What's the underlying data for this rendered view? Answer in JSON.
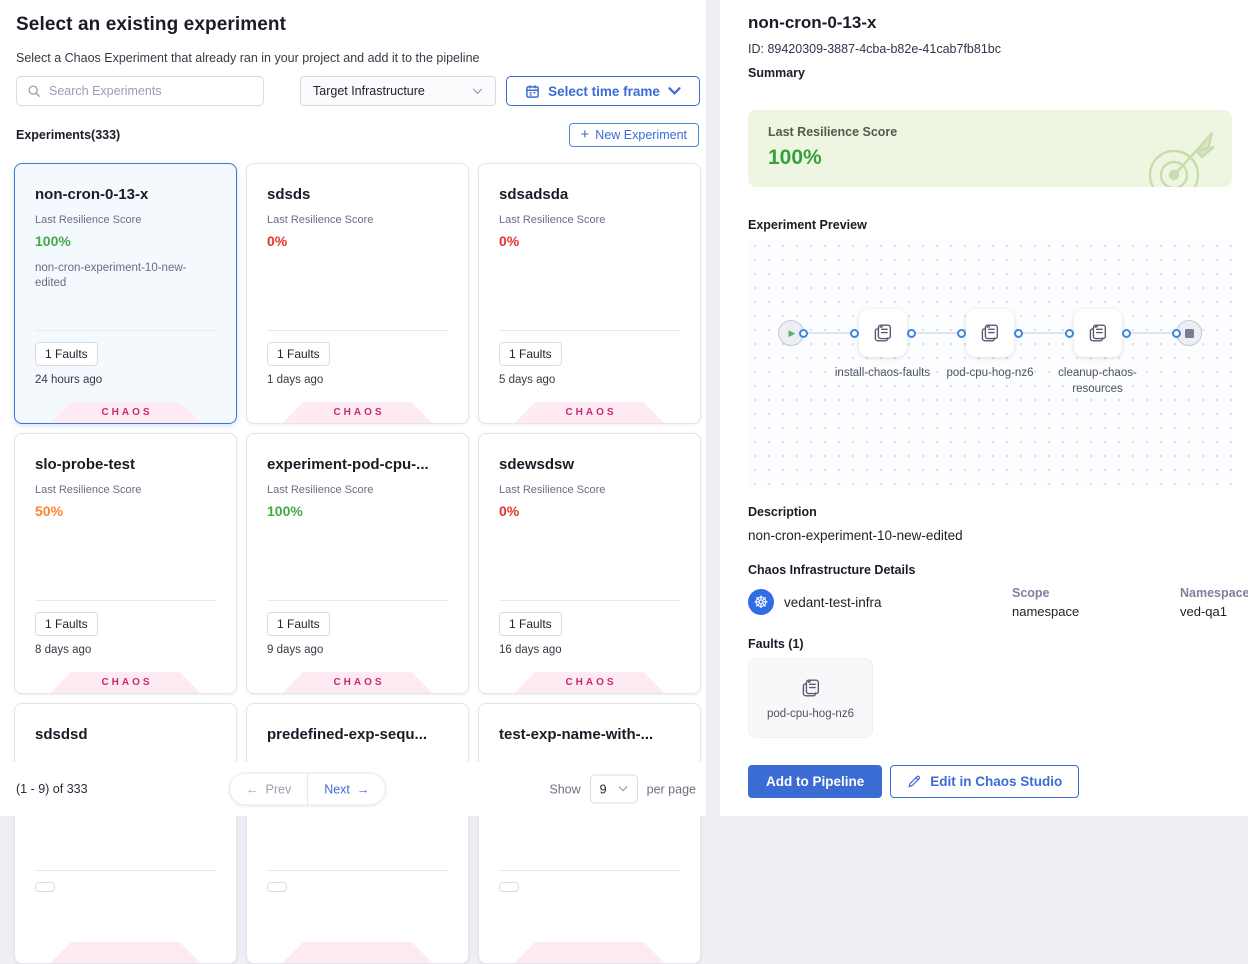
{
  "left": {
    "title": "Select an existing experiment",
    "subtitle": "Select a Chaos Experiment that already ran in your project and add it to the pipeline",
    "search_placeholder": "Search Experiments",
    "infra_filter_value": "Target Infrastructure",
    "time_frame_label": "Select time frame",
    "experiments_count": "Experiments(333)",
    "new_experiment_label": "New Experiment",
    "cards": [
      {
        "name": "non-cron-0-13-x",
        "score_label": "Last Resilience Score",
        "score": "100%",
        "score_class": "green",
        "description": "non-cron-experiment-10-new-edited",
        "faults": "1 Faults",
        "ago": "24 hours ago",
        "badge": "CHAOS",
        "selected": true
      },
      {
        "name": "sdsds",
        "score_label": "Last Resilience Score",
        "score": "0%",
        "score_class": "red",
        "faults": "1 Faults",
        "ago": "1 days ago",
        "badge": "CHAOS"
      },
      {
        "name": "sdsadsda",
        "score_label": "Last Resilience Score",
        "score": "0%",
        "score_class": "red",
        "faults": "1 Faults",
        "ago": "5 days ago",
        "badge": "CHAOS"
      },
      {
        "name": "slo-probe-test",
        "score_label": "Last Resilience Score",
        "score": "50%",
        "score_class": "orange",
        "faults": "1 Faults",
        "ago": "8 days ago",
        "badge": "CHAOS"
      },
      {
        "name": "experiment-pod-cpu-...",
        "score_label": "Last Resilience Score",
        "score": "100%",
        "score_class": "green",
        "faults": "1 Faults",
        "ago": "9 days ago",
        "badge": "CHAOS"
      },
      {
        "name": "sdewsdsw",
        "score_label": "Last Resilience Score",
        "score": "0%",
        "score_class": "red",
        "faults": "1 Faults",
        "ago": "16 days ago",
        "badge": "CHAOS"
      },
      {
        "name": "sdsdsd"
      },
      {
        "name": "predefined-exp-sequ..."
      },
      {
        "name": "test-exp-name-with-..."
      }
    ],
    "pagination": {
      "range": "(1 - 9) of 333",
      "prev": "Prev",
      "next": "Next",
      "show": "Show",
      "page_size": "9",
      "per_page": "per page"
    }
  },
  "right": {
    "title": "non-cron-0-13-x",
    "id": "ID: 89420309-3887-4cba-b82e-41cab7fb81bc",
    "summary_heading": "Summary",
    "resilience_label": "Last Resilience Score",
    "resilience_value": "100%",
    "preview_heading": "Experiment Preview",
    "pipeline_nodes": [
      "install-chaos-faults",
      "pod-cpu-hog-nz6",
      "cleanup-chaos-resources"
    ],
    "description_heading": "Description",
    "description": "non-cron-experiment-10-new-edited",
    "infra_heading": "Chaos Infrastructure Details",
    "infra_name": "vedant-test-infra",
    "scope_label": "Scope",
    "scope_value": "namespace",
    "namespace_label": "Namespace",
    "namespace_value": "ved-qa1",
    "faults_heading": "Faults (1)",
    "fault_name": "pod-cpu-hog-nz6",
    "add_to_pipeline_label": "Add to Pipeline",
    "edit_label": "Edit in Chaos Studio"
  },
  "icons": {
    "kubernetes": "☸",
    "play": "▶",
    "plus": "+",
    "prev_arrow": "←",
    "next_arrow": "→"
  },
  "colors": {
    "accent_blue": "#3a6cd4",
    "port_blue": "#3d85e0",
    "success_green": "#42ab45",
    "danger_red": "#e3342a",
    "warning_orange": "#ff832b",
    "chaos_magenta": "#c9296f",
    "chaos_pink_bg": "#fdeaf3",
    "summary_green_bg": "#eef6e2"
  }
}
